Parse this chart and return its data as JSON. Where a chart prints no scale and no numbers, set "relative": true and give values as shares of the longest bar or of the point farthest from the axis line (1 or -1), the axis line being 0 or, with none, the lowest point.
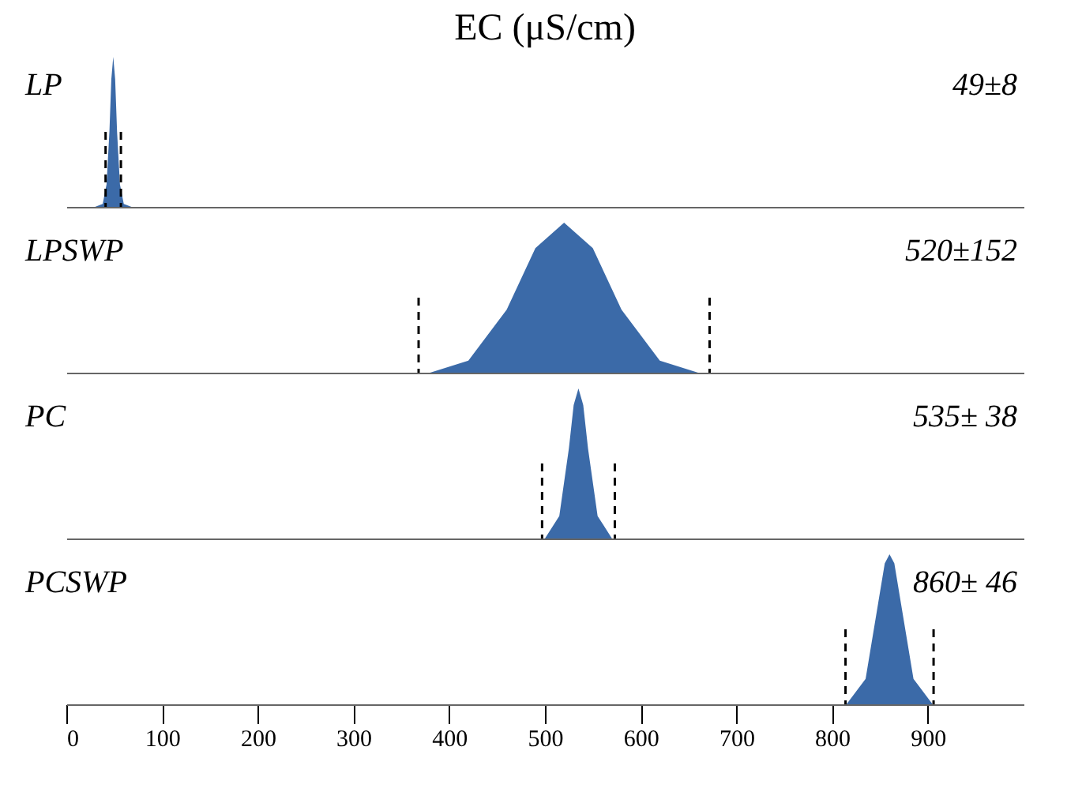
{
  "chart_data": [
    {
      "type": "area",
      "title": "EC (μS/cm)",
      "annotations": [
        "LP",
        "49±8"
      ],
      "relative": true,
      "color": "#3b6aa8",
      "x": [
        30,
        38,
        42,
        45,
        47,
        49,
        51,
        53,
        56,
        60,
        68
      ],
      "values": [
        0,
        0.02,
        0.15,
        0.5,
        0.85,
        1,
        0.85,
        0.5,
        0.15,
        0.02,
        0
      ],
      "ref_lines": [
        {
          "axis": "x",
          "value": 41,
          "line_style": "dashed",
          "color": "#000000"
        },
        {
          "axis": "x",
          "value": 57,
          "line_style": "dashed",
          "color": "#000000"
        }
      ],
      "xlim": [
        0,
        1000
      ],
      "xticks": [
        0,
        100,
        200,
        300,
        400,
        500,
        600,
        700,
        800,
        900
      ],
      "tick_labels": false
    },
    {
      "type": "area",
      "annotations": [
        "LPSWP",
        "520±152"
      ],
      "relative": true,
      "color": "#3b6aa8",
      "x": [
        380,
        420,
        460,
        490,
        520,
        550,
        580,
        620,
        660
      ],
      "values": [
        0,
        0.08,
        0.42,
        0.83,
        1,
        0.83,
        0.42,
        0.08,
        0
      ],
      "ref_lines": [
        {
          "axis": "x",
          "value": 368,
          "line_style": "dashed",
          "color": "#000000"
        },
        {
          "axis": "x",
          "value": 672,
          "line_style": "dashed",
          "color": "#000000"
        }
      ],
      "xlim": [
        0,
        1000
      ],
      "xticks": [
        0,
        100,
        200,
        300,
        400,
        500,
        600,
        700,
        800,
        900
      ],
      "tick_labels": false
    },
    {
      "type": "area",
      "annotations": [
        "PC",
        "535± 38"
      ],
      "relative": true,
      "color": "#3b6aa8",
      "x": [
        500,
        515,
        525,
        530,
        535,
        540,
        545,
        555,
        570
      ],
      "values": [
        0,
        0.15,
        0.6,
        0.89,
        1,
        0.89,
        0.6,
        0.15,
        0
      ],
      "ref_lines": [
        {
          "axis": "x",
          "value": 497,
          "line_style": "dashed",
          "color": "#000000"
        },
        {
          "axis": "x",
          "value": 573,
          "line_style": "dashed",
          "color": "#000000"
        }
      ],
      "xlim": [
        0,
        1000
      ],
      "xticks": [
        0,
        100,
        200,
        300,
        400,
        500,
        600,
        700,
        800,
        900
      ],
      "tick_labels": false
    },
    {
      "type": "area",
      "annotations": [
        "PCSWP",
        "860± 46"
      ],
      "relative": true,
      "color": "#3b6aa8",
      "x": [
        815,
        835,
        848,
        855,
        860,
        865,
        872,
        885,
        905
      ],
      "values": [
        0,
        0.17,
        0.67,
        0.94,
        1,
        0.94,
        0.67,
        0.17,
        0
      ],
      "ref_lines": [
        {
          "axis": "x",
          "value": 814,
          "line_style": "dashed",
          "color": "#000000"
        },
        {
          "axis": "x",
          "value": 906,
          "line_style": "dashed",
          "color": "#000000"
        }
      ],
      "xlim": [
        0,
        1000
      ],
      "xticks": [
        0,
        100,
        200,
        300,
        400,
        500,
        600,
        700,
        800,
        900
      ],
      "tick_labels": "x"
    }
  ]
}
